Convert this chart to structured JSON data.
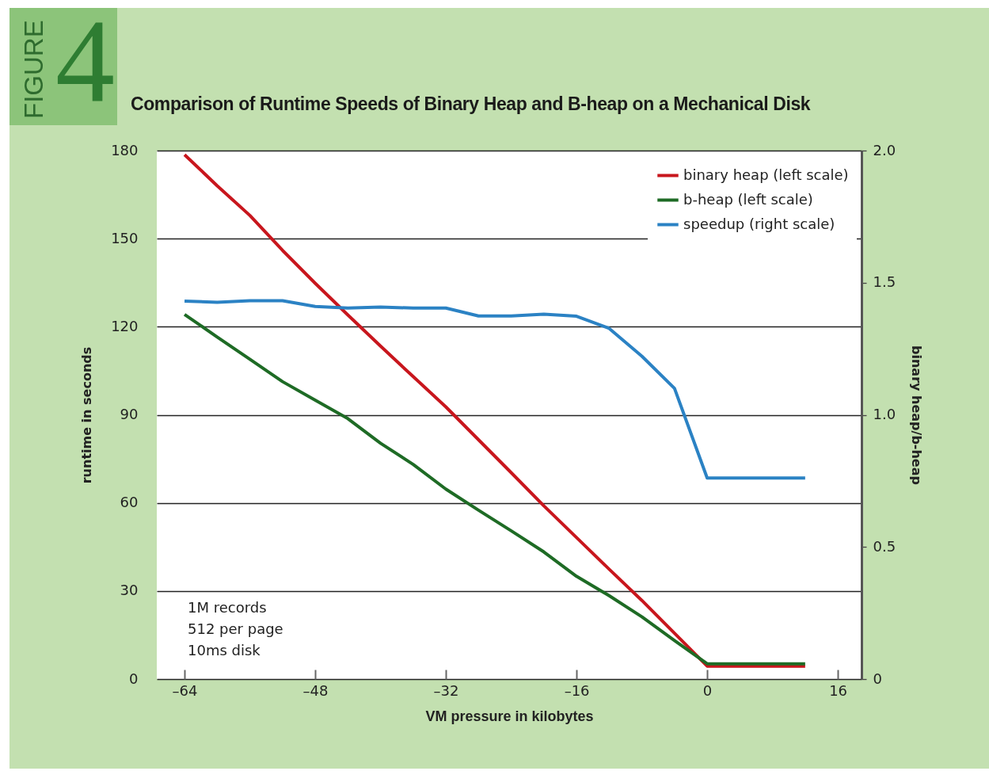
{
  "chart_data": {
    "type": "line",
    "title": "Comparison of Runtime Speeds of Binary Heap and B-heap on a Mechanical Disk",
    "xlabel": "VM pressure in kilobytes",
    "ylabel": "runtime in seconds",
    "y2label": "binary heap/b-heap",
    "annotations": [
      "FIGURE",
      "4",
      "1M records",
      "512 per page",
      "10ms disk"
    ],
    "x": [
      -64,
      -60,
      -56,
      -52,
      -48,
      -44,
      -40,
      -36,
      -32,
      -28,
      -24,
      -20,
      -16,
      -12,
      -8,
      -4,
      0,
      4,
      8,
      12
    ],
    "series": [
      {
        "name": "binary heap (left scale)",
        "color": "#c8161d",
        "values": [
          178.6,
          168,
          157.9,
          146,
          134.8,
          124,
          113.4,
          103,
          92.7,
          81.5,
          70.3,
          59,
          48.2,
          37.4,
          26.8,
          15.6,
          4.4,
          4.4,
          4.4,
          4.4
        ]
      },
      {
        "name": "b-heap (left scale)",
        "color": "#1e6b25",
        "values": [
          124.2,
          116.5,
          108.9,
          101.3,
          95,
          88.7,
          80.3,
          73.1,
          64.7,
          57.5,
          50.5,
          43.3,
          35,
          28.4,
          21.2,
          13.1,
          5.2,
          5.2,
          5.2,
          5.2
        ]
      },
      {
        "name": "speedup (right scale)",
        "color": "#2b82c4",
        "axis": "y2",
        "values": [
          1.43,
          1.426,
          1.432,
          1.432,
          1.41,
          1.404,
          1.408,
          1.404,
          1.404,
          1.374,
          1.374,
          1.381,
          1.373,
          1.327,
          1.222,
          1.1,
          0.761,
          0.761,
          0.761,
          0.761
        ]
      }
    ],
    "xlim": [
      -67.4,
      18.9
    ],
    "xticks": [
      {
        "value": -64,
        "label": "–64"
      },
      {
        "value": -48,
        "label": "–48"
      },
      {
        "value": -32,
        "label": "–32"
      },
      {
        "value": -16,
        "label": "–16"
      },
      0,
      16
    ],
    "ylim": [
      0,
      180
    ],
    "yticks": [
      0,
      30,
      60,
      90,
      120,
      150,
      180
    ],
    "y2lim": [
      0,
      2
    ],
    "y2ticks": [
      0,
      0.5,
      {
        "value": 1,
        "label": "1.0"
      },
      1.5,
      {
        "value": 2,
        "label": "2.0"
      }
    ],
    "grid": "y",
    "legend": "top right"
  }
}
